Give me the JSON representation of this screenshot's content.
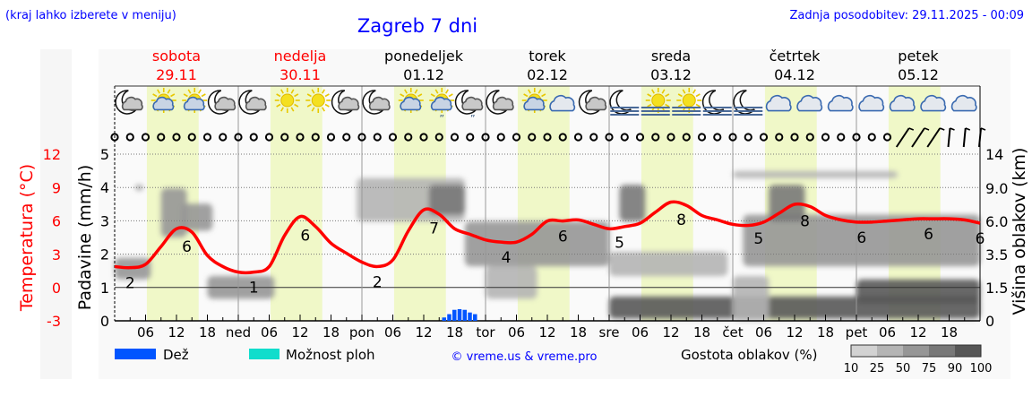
{
  "header": {
    "hint": "(kraj lahko izberete v meniju)",
    "title": "Zagreb 7 dni",
    "updated": "Zadnja posodobitev: 29.11.2025 - 00:09"
  },
  "days": [
    {
      "name": "sobota",
      "date": "29.11",
      "weekend": true,
      "short": ""
    },
    {
      "name": "nedelja",
      "date": "30.11",
      "weekend": true,
      "short": "ned"
    },
    {
      "name": "ponedeljek",
      "date": "01.12",
      "weekend": false,
      "short": "pon"
    },
    {
      "name": "torek",
      "date": "02.12",
      "weekend": false,
      "short": "tor"
    },
    {
      "name": "sreda",
      "date": "03.12",
      "weekend": false,
      "short": "sre"
    },
    {
      "name": "četrtek",
      "date": "04.12",
      "weekend": false,
      "short": "čet"
    },
    {
      "name": "petek",
      "date": "05.12",
      "weekend": false,
      "short": "pet"
    }
  ],
  "legend": {
    "rain": "Dež",
    "showers": "Možnost ploh",
    "credit": "© vreme.us & vreme.pro",
    "cloud_density": "Gostota oblakov (%)",
    "cloud_scale": [
      "10",
      "25",
      "50",
      "75",
      "90",
      "100"
    ]
  },
  "colors": {
    "temperature": "#ff0000",
    "rain": "#0055ff",
    "showers": "#11ddcc",
    "daylight": "#f0f8c8",
    "title": "#0000ff",
    "cloud_levels": [
      "#d2d2d2",
      "#b4b4b4",
      "#969696",
      "#787878",
      "#575757"
    ]
  },
  "chart_data": {
    "type": "line",
    "x_unit": "hour from 29.11 00:00",
    "x_ticks": [
      "06",
      "12",
      "18"
    ],
    "y_left_temperature": {
      "label": "Temperatura (°C)",
      "ticks": [
        "-3",
        "0",
        "3",
        "6",
        "9",
        "12"
      ],
      "range": [
        -3,
        12
      ]
    },
    "y_left_precip": {
      "label": "Padavine (mm/h)",
      "ticks": [
        "0",
        "1",
        "2",
        "3",
        "4",
        "5"
      ],
      "range": [
        0,
        5
      ]
    },
    "y_right_cloud": {
      "label": "Višina oblakov (km)",
      "ticks": [
        "0",
        "1.5",
        "3.5",
        "6.0",
        "9.0",
        "14"
      ]
    },
    "grid": true,
    "daylight_hours": [
      6.25,
      16.3
    ],
    "temperature": {
      "step_hours": 3,
      "values": [
        1.9,
        1.8,
        2.1,
        3.7,
        5.3,
        5.0,
        2.9,
        1.9,
        1.4,
        1.4,
        1.9,
        4.7,
        6.4,
        5.5,
        4.0,
        3.1,
        2.3,
        1.9,
        2.5,
        5.1,
        7.0,
        6.6,
        5.3,
        4.8,
        4.3,
        4.1,
        4.1,
        4.8,
        6.0,
        6.0,
        6.1,
        5.7,
        5.3,
        5.5,
        5.8,
        6.8,
        7.7,
        7.4,
        6.5,
        6.1,
        5.7,
        5.6,
        5.9,
        6.7,
        7.5,
        7.3,
        6.5,
        6.1,
        5.9,
        5.9,
        6.0,
        6.1,
        6.2,
        6.2,
        6.2,
        6.1,
        5.8
      ]
    },
    "temperature_labels": [
      {
        "h": 3,
        "v": "2"
      },
      {
        "h": 14,
        "v": "6"
      },
      {
        "h": 27,
        "v": "1"
      },
      {
        "h": 37,
        "v": "6"
      },
      {
        "h": 51,
        "v": "2"
      },
      {
        "h": 62,
        "v": "7"
      },
      {
        "h": 76,
        "v": "4"
      },
      {
        "h": 87,
        "v": "6"
      },
      {
        "h": 98,
        "v": "5"
      },
      {
        "h": 110,
        "v": "8"
      },
      {
        "h": 125,
        "v": "5"
      },
      {
        "h": 134,
        "v": "8"
      },
      {
        "h": 145,
        "v": "6"
      },
      {
        "h": 158,
        "v": "6"
      },
      {
        "h": 168,
        "v": "6"
      }
    ],
    "rain": [
      {
        "h": 64,
        "mm": 0.1
      },
      {
        "h": 65,
        "mm": 0.2
      },
      {
        "h": 66,
        "mm": 0.33
      },
      {
        "h": 67,
        "mm": 0.35
      },
      {
        "h": 68,
        "mm": 0.33
      },
      {
        "h": 69,
        "mm": 0.25
      },
      {
        "h": 70,
        "mm": 0.2
      }
    ],
    "clouds": [
      {
        "h": [
          0,
          7
        ],
        "km": [
          2.0,
          3.3
        ],
        "density": 50
      },
      {
        "h": [
          4,
          5.5
        ],
        "km": [
          8.8,
          9.5
        ],
        "density": 50
      },
      {
        "h": [
          9,
          14
        ],
        "km": [
          4.8,
          9.0
        ],
        "density": 50
      },
      {
        "h": [
          13,
          19
        ],
        "km": [
          5.3,
          7.6
        ],
        "density": 50
      },
      {
        "h": [
          18,
          31
        ],
        "km": [
          1.0,
          2.2
        ],
        "density": 50
      },
      {
        "h": [
          47,
          68
        ],
        "km": [
          6.0,
          10.5
        ],
        "density": 25
      },
      {
        "h": [
          61,
          68
        ],
        "km": [
          6.6,
          9.5
        ],
        "density": 75
      },
      {
        "h": [
          68,
          96
        ],
        "km": [
          2.8,
          6.0
        ],
        "density": 50
      },
      {
        "h": [
          72,
          82
        ],
        "km": [
          1.0,
          2.8
        ],
        "density": 25
      },
      {
        "h": [
          96,
          168
        ],
        "km": [
          0.1,
          1.1
        ],
        "density": 90
      },
      {
        "h": [
          98,
          103
        ],
        "km": [
          6.0,
          9.5
        ],
        "density": 75
      },
      {
        "h": [
          96,
          119
        ],
        "km": [
          2.2,
          3.7
        ],
        "density": 25
      },
      {
        "h": [
          120,
          127
        ],
        "km": [
          0,
          2.2
        ],
        "density": 25
      },
      {
        "h": [
          122,
          168
        ],
        "km": [
          2.8,
          6.6
        ],
        "density": 50
      },
      {
        "h": [
          127,
          134
        ],
        "km": [
          6.0,
          9.5
        ],
        "density": 75
      },
      {
        "h": [
          120,
          152
        ],
        "km": [
          10.5,
          11.5
        ],
        "density": 25
      },
      {
        "h": [
          144,
          168
        ],
        "km": [
          0.8,
          2.0
        ],
        "density": 90
      }
    ],
    "wind": {
      "calm_until_hour": 150,
      "barbs": [
        {
          "h": 153,
          "dir": "SW"
        },
        {
          "h": 156,
          "dir": "SW"
        },
        {
          "h": 159,
          "dir": "SW"
        },
        {
          "h": 162,
          "dir": "S"
        },
        {
          "h": 165,
          "dir": "S"
        },
        {
          "h": 168,
          "dir": "S"
        }
      ]
    },
    "weather_icons": [
      "moon-cloud",
      "sun-cloud",
      "sun-cloud",
      "moon-cloud",
      "moon-cloud",
      "sun",
      "sun",
      "moon-cloud",
      "moon-cloud",
      "sun-cloud",
      "sun-cloud-rain",
      "moon-cloud-rain",
      "moon-cloud",
      "sun-cloud",
      "cloud",
      "moon-cloud",
      "moon-fog",
      "sun-fog",
      "sun-fog",
      "moon-fog",
      "moon-fog",
      "cloud",
      "cloud",
      "cloud",
      "cloud",
      "cloud",
      "cloud",
      "cloud"
    ]
  }
}
